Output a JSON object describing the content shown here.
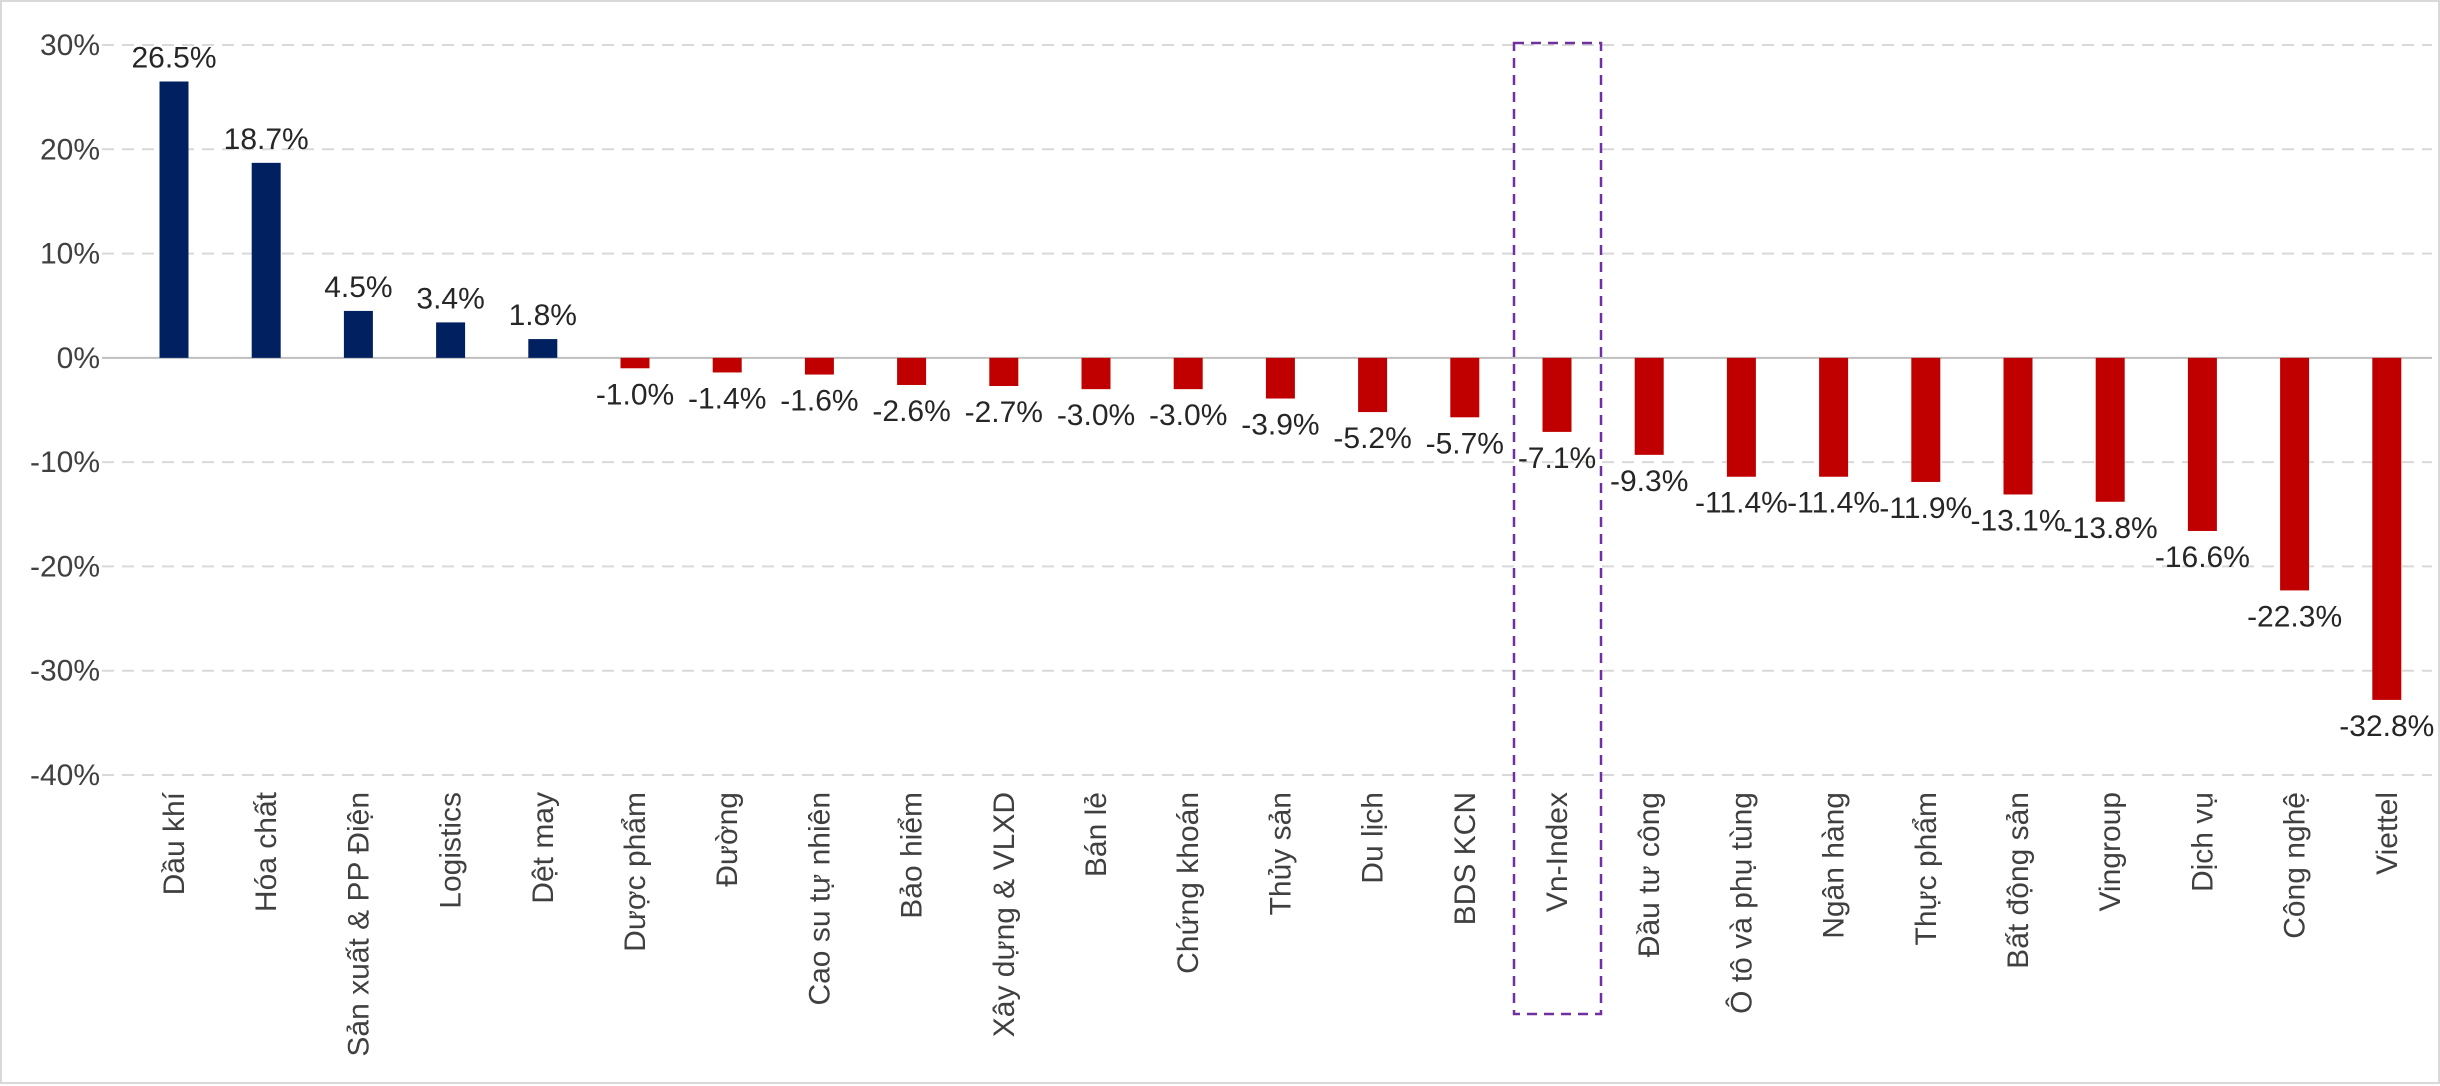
{
  "chart_data": {
    "type": "bar",
    "categories": [
      "Dầu khí",
      "Hóa chất",
      "Sản xuất & PP Điện",
      "Logistics",
      "Dệt may",
      "Dược phẩm",
      "Đường",
      "Cao su tự nhiên",
      "Bảo hiểm",
      "Xây dựng & VLXD",
      "Bán lẻ",
      "Chứng khoán",
      "Thủy sản",
      "Du lịch",
      "BDS KCN",
      "Vn-Index",
      "Đầu tư công",
      "Ô tô và phụ tùng",
      "Ngân hàng",
      "Thực phẩm",
      "Bất động sản",
      "Vingroup",
      "Dịch vụ",
      "Công nghệ",
      "Viettel"
    ],
    "values": [
      26.5,
      18.7,
      4.5,
      3.4,
      1.8,
      -1.0,
      -1.4,
      -1.6,
      -2.6,
      -2.7,
      -3.0,
      -3.0,
      -3.9,
      -5.2,
      -5.7,
      -7.1,
      -9.3,
      -11.4,
      -11.4,
      -11.9,
      -13.1,
      -13.8,
      -16.6,
      -22.3,
      -32.8
    ],
    "data_labels": [
      "26.5%",
      "18.7%",
      "4.5%",
      "3.4%",
      "1.8%",
      "-1.0%",
      "-1.4%",
      "-1.6%",
      "-2.6%",
      "-2.7%",
      "-3.0%",
      "-3.0%",
      "-3.9%",
      "-5.2%",
      "-5.7%",
      "-7.1%",
      "-9.3%",
      "-11.4%",
      "-11.4%",
      "-11.9%",
      "-13.1%",
      "-13.8%",
      "-16.6%",
      "-22.3%",
      "-32.8%"
    ],
    "y_ticks": [
      30,
      20,
      10,
      0,
      -10,
      -20,
      -30,
      -40
    ],
    "y_tick_labels": [
      "30%",
      "20%",
      "10%",
      "0%",
      "-10%",
      "-20%",
      "-30%",
      "-40%"
    ],
    "ylim": [
      -40,
      30
    ],
    "grid": true,
    "highlighted_category": "Vn-Index",
    "colors": {
      "positive": "#002060",
      "negative": "#c00000",
      "highlight_box": "#7030a0",
      "grid": "#d9d9d9"
    }
  }
}
